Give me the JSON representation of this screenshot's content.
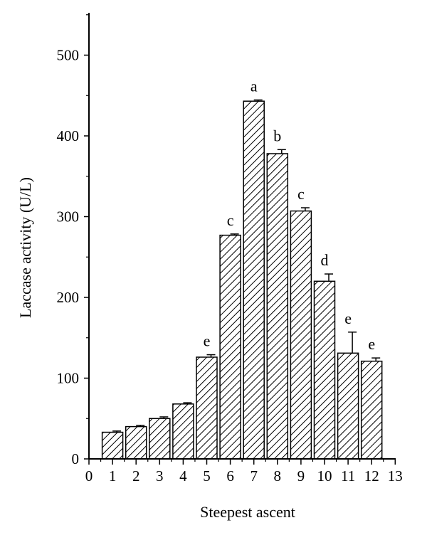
{
  "chart_data": {
    "type": "bar",
    "title": "",
    "xlabel": "Steepest ascent",
    "ylabel": "Laccase activity (U/L)",
    "xlim": [
      0,
      13
    ],
    "ylim": [
      0,
      550
    ],
    "x_ticks": [
      0,
      1,
      2,
      3,
      4,
      5,
      6,
      7,
      8,
      9,
      10,
      11,
      12,
      13
    ],
    "y_ticks": [
      0,
      100,
      200,
      300,
      400,
      500
    ],
    "grid": false,
    "bar_pattern": "diagonal-hatch",
    "bar_color": "#000000",
    "x": [
      1,
      2,
      3,
      4,
      5,
      6,
      7,
      8,
      9,
      10,
      11,
      12
    ],
    "values": [
      33,
      40,
      50,
      68,
      126,
      277,
      443,
      378,
      307,
      220,
      131,
      121
    ],
    "errors": [
      1.5,
      1.5,
      2,
      1.5,
      3,
      1.5,
      1.5,
      5,
      4,
      9,
      26,
      4
    ],
    "significance_labels": [
      "",
      "",
      "",
      "",
      "e",
      "c",
      "a",
      "b",
      "c",
      "d",
      "e",
      "e"
    ]
  }
}
